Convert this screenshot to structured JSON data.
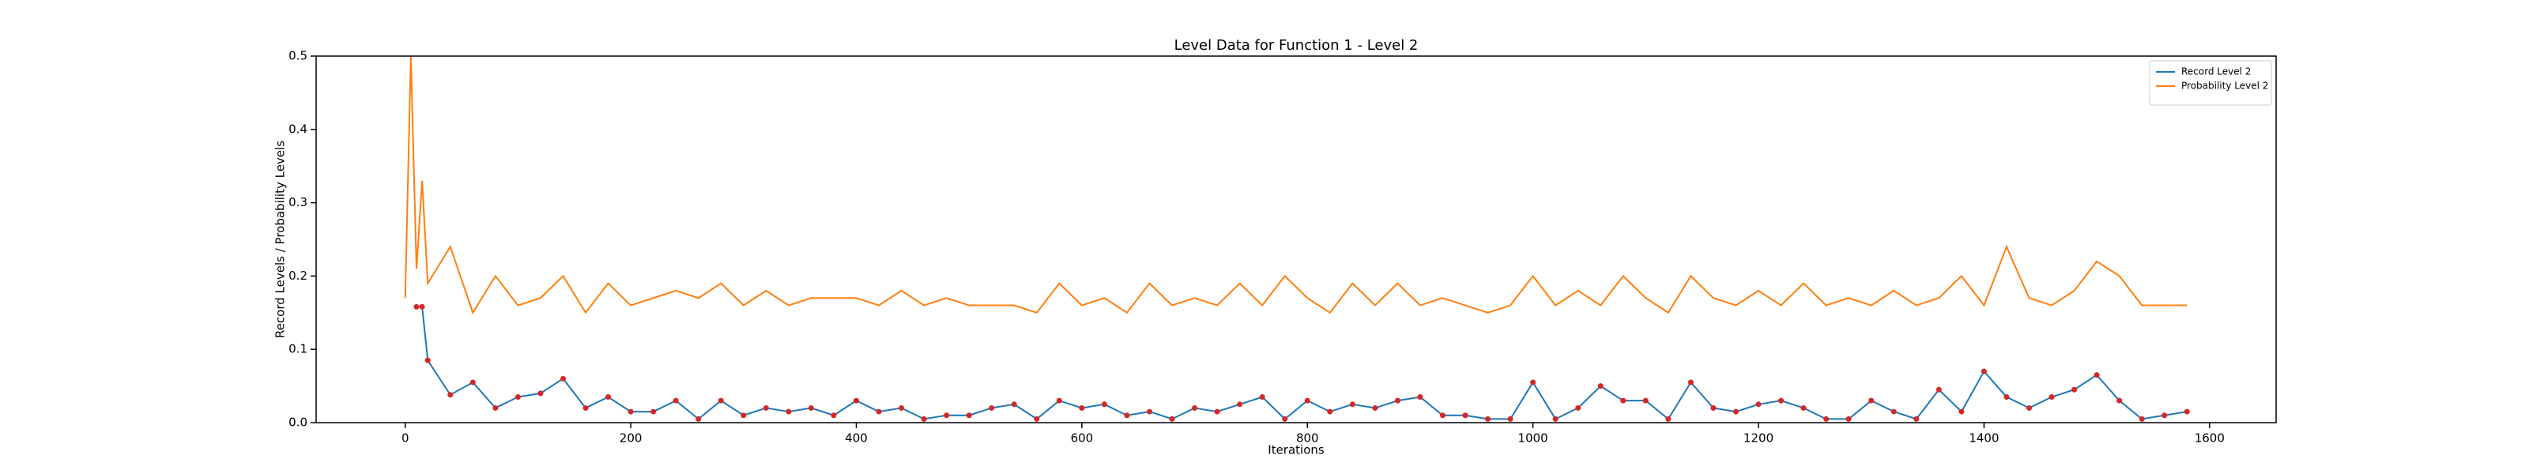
{
  "chart_data": {
    "type": "line",
    "title": "Level Data for Function 1 - Level 2",
    "x_label": "Iterations",
    "y_label": "Record Levels / Probability Levels",
    "x": [
      0,
      5,
      10,
      15,
      20,
      40,
      60,
      80,
      100,
      120,
      140,
      160,
      180,
      200,
      220,
      240,
      260,
      280,
      300,
      320,
      340,
      360,
      380,
      400,
      420,
      440,
      460,
      480,
      500,
      520,
      540,
      560,
      580,
      600,
      620,
      640,
      660,
      680,
      700,
      720,
      740,
      760,
      780,
      800,
      820,
      840,
      860,
      880,
      900,
      920,
      940,
      960,
      980,
      1000,
      1020,
      1040,
      1060,
      1080,
      1100,
      1120,
      1140,
      1160,
      1180,
      1200,
      1220,
      1240,
      1260,
      1280,
      1300,
      1320,
      1340,
      1360,
      1380,
      1400,
      1420,
      1440,
      1460,
      1480,
      1500,
      1520,
      1540,
      1560,
      1580
    ],
    "series": [
      {
        "name": "Record Level 2",
        "color": "#1f77b4",
        "values": [
          null,
          null,
          0.158,
          0.158,
          0.085,
          0.038,
          0.055,
          0.02,
          0.035,
          0.04,
          0.06,
          0.02,
          0.035,
          0.015,
          0.015,
          0.03,
          0.005,
          0.03,
          0.01,
          0.02,
          0.015,
          0.02,
          0.01,
          0.03,
          0.015,
          0.02,
          0.005,
          0.01,
          0.01,
          0.02,
          0.025,
          0.005,
          0.03,
          0.02,
          0.025,
          0.01,
          0.015,
          0.005,
          0.02,
          0.015,
          0.025,
          0.035,
          0.005,
          0.03,
          0.015,
          0.025,
          0.02,
          0.03,
          0.035,
          0.01,
          0.01,
          0.005,
          0.005,
          0.055,
          0.005,
          0.02,
          0.05,
          0.03,
          0.03,
          0.005,
          0.055,
          0.02,
          0.015,
          0.025,
          0.03,
          0.02,
          0.005,
          0.005,
          0.03,
          0.015,
          0.005,
          0.045,
          0.015,
          0.07,
          0.035,
          0.02,
          0.035,
          0.045,
          0.065,
          0.03,
          0.005,
          0.01,
          0.015
        ]
      },
      {
        "name": "Probability Level 2",
        "color": "#ff7f0e",
        "values": [
          0.17,
          0.5,
          0.21,
          0.33,
          0.19,
          0.24,
          0.15,
          0.2,
          0.16,
          0.17,
          0.2,
          0.15,
          0.19,
          0.16,
          0.17,
          0.18,
          0.17,
          0.19,
          0.16,
          0.18,
          0.16,
          0.17,
          0.17,
          0.17,
          0.16,
          0.18,
          0.16,
          0.17,
          0.16,
          0.16,
          0.16,
          0.15,
          0.19,
          0.16,
          0.17,
          0.15,
          0.19,
          0.16,
          0.17,
          0.16,
          0.19,
          0.16,
          0.2,
          0.17,
          0.15,
          0.19,
          0.16,
          0.19,
          0.16,
          0.17,
          0.16,
          0.15,
          0.16,
          0.2,
          0.16,
          0.18,
          0.16,
          0.2,
          0.17,
          0.15,
          0.2,
          0.17,
          0.16,
          0.18,
          0.16,
          0.19,
          0.16,
          0.17,
          0.16,
          0.18,
          0.16,
          0.17,
          0.2,
          0.16,
          0.24,
          0.17,
          0.16,
          0.18,
          0.22,
          0.2,
          0.16,
          0.16,
          0.16
        ]
      }
    ],
    "point_color": "#d62728",
    "xlim": [
      -79,
      1659
    ],
    "xticks": [
      0,
      200,
      400,
      600,
      800,
      1000,
      1200,
      1400,
      1600
    ],
    "ylim": [
      0,
      0.5
    ],
    "yticks": [
      {
        "value": 0,
        "label": "0.0"
      },
      0.1,
      0.2,
      0.3,
      0.4,
      0.5
    ],
    "legend": "upper right"
  }
}
